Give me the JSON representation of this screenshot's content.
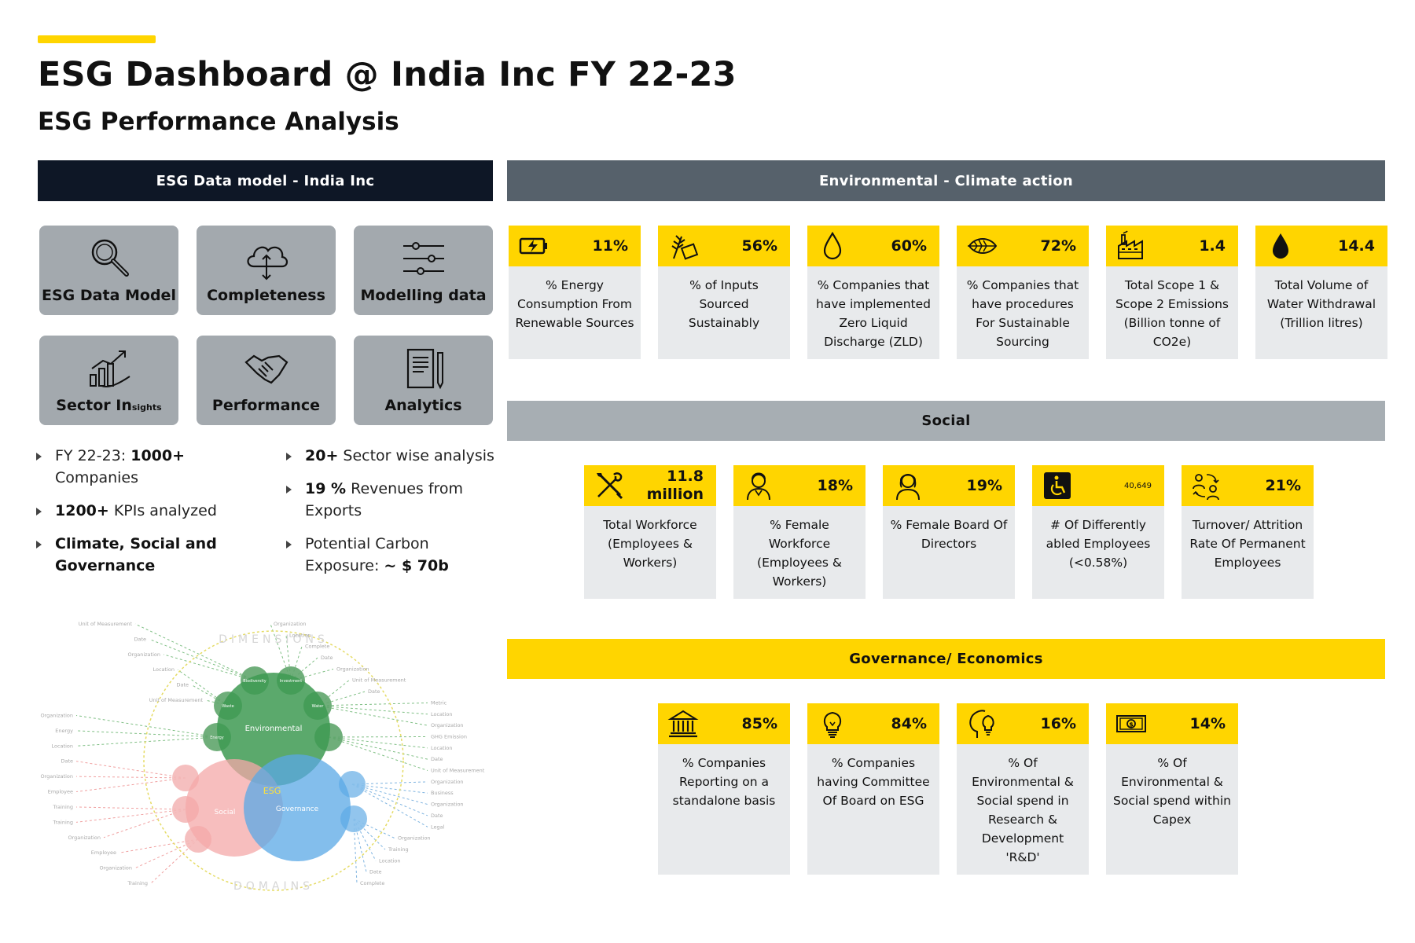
{
  "header": {
    "title": "ESG Dashboard @ India Inc FY 22-23",
    "subtitle": "ESG Performance Analysis"
  },
  "colors": {
    "accent": "#FFD500",
    "dark": "#0E1726",
    "env_bar": "#56616B",
    "social_bar": "#A7AEB3",
    "card_bg": "#E8EAEC",
    "tile_bg": "#A3A9AE"
  },
  "data_model": {
    "title": "ESG Data model - India Inc",
    "tiles": [
      {
        "label": "ESG Data Model",
        "icon": "magnifier-icon"
      },
      {
        "label": "Completeness",
        "icon": "cloud-sync-icon"
      },
      {
        "label": "Modelling data",
        "icon": "sliders-icon"
      },
      {
        "label": "Sector In",
        "label_small": "sights",
        "icon": "growth-chart-icon"
      },
      {
        "label": "Performance",
        "icon": "handshake-icon"
      },
      {
        "label": "Analytics",
        "icon": "notebook-icon"
      }
    ]
  },
  "highlights": {
    "left": [
      {
        "pre": "FY 22-23: ",
        "bold": "1000+",
        "post": " Companies"
      },
      {
        "pre": "",
        "bold": "1200+",
        "post": " KPIs analyzed"
      },
      {
        "pre": "",
        "bold": "Climate, Social and Governance",
        "post": ""
      }
    ],
    "right": [
      {
        "pre": "",
        "bold": "20+",
        "post": " Sector wise analysis"
      },
      {
        "pre": "",
        "bold": "19 %",
        "post": " Revenues from Exports"
      },
      {
        "pre": "Potential Carbon Exposure: ",
        "bold": "~ $ 70b",
        "post": ""
      }
    ]
  },
  "environmental": {
    "title": "Environmental - Climate action",
    "cards": [
      {
        "value": "11%",
        "label": "% Energy Consumption From Renewable Sources",
        "icon": "battery-charge-icon"
      },
      {
        "value": "56%",
        "label": "% of Inputs Sourced Sustainably",
        "icon": "wheat-crate-icon"
      },
      {
        "value": "60%",
        "label": "% Companies that have implemented Zero Liquid Discharge (ZLD)",
        "icon": "water-drop-outline-icon"
      },
      {
        "value": "72%",
        "label": "% Companies that have procedures For Sustainable Sourcing",
        "icon": "leaf-icon"
      },
      {
        "value": "1.4",
        "label": "Total Scope 1 & Scope 2 Emissions (Billion tonne of CO2e)",
        "icon": "factory-icon"
      },
      {
        "value": "14.4",
        "label": "Total Volume of Water Withdrawal (Trillion litres)",
        "icon": "water-drop-solid-icon"
      }
    ]
  },
  "social": {
    "title": "Social",
    "cards": [
      {
        "value": "11.8 million",
        "label": "Total Workforce (Employees & Workers)",
        "icon": "tools-icon"
      },
      {
        "value": "18%",
        "label": "% Female Workforce (Employees & Workers)",
        "icon": "female-worker-icon"
      },
      {
        "value": "19%",
        "label": "% Female Board Of Directors",
        "icon": "female-director-icon"
      },
      {
        "value": "40,649",
        "label": "# Of Differently abled Employees (<0.58%)",
        "icon": "wheelchair-icon"
      },
      {
        "value": "21%",
        "label": "Turnover/ Attrition Rate Of Permanent Employees",
        "icon": "people-cycle-icon"
      }
    ]
  },
  "governance": {
    "title": "Governance/ Economics",
    "cards": [
      {
        "value": "85%",
        "label": "% Companies Reporting on a standalone basis",
        "icon": "bank-icon"
      },
      {
        "value": "84%",
        "label": "% Companies having Committee Of Board on ESG",
        "icon": "lightbulb-icon"
      },
      {
        "value": "16%",
        "label": "% Of Environmental & Social spend in Research & Development 'R&D'",
        "icon": "head-idea-icon"
      },
      {
        "value": "14%",
        "label": "% Of Environmental & Social spend within Capex",
        "icon": "banknote-icon"
      }
    ]
  },
  "diagram": {
    "center": "ESG",
    "circles": [
      "Environmental",
      "Social",
      "Governance"
    ],
    "ring_top": "DIMENSIONS",
    "ring_bottom": "DOMAINS",
    "left_labels": [
      "Unit of Measurement",
      "Date",
      "Organization",
      "Location",
      "Date",
      "Unit of Measurement",
      "Organization",
      "Energy",
      "Location",
      "Date",
      "Organization",
      "Employee",
      "Training",
      "Training",
      "Organization",
      "Employee",
      "Organization",
      "Training"
    ],
    "right_labels": [
      "Organization",
      "Location",
      "Complete",
      "Date",
      "Organization",
      "Unit of Measurement",
      "Date",
      "Metric",
      "Location",
      "Organization",
      "GHG Emission",
      "Location",
      "Date",
      "Unit of Measurement",
      "Organization",
      "Business",
      "Organization",
      "Date",
      "Legal",
      "Organization",
      "Training",
      "Location",
      "Date",
      "Complete"
    ],
    "bubble_labels": [
      "Biodiversity",
      "Investment",
      "Waste",
      "Water",
      "Energy"
    ]
  }
}
